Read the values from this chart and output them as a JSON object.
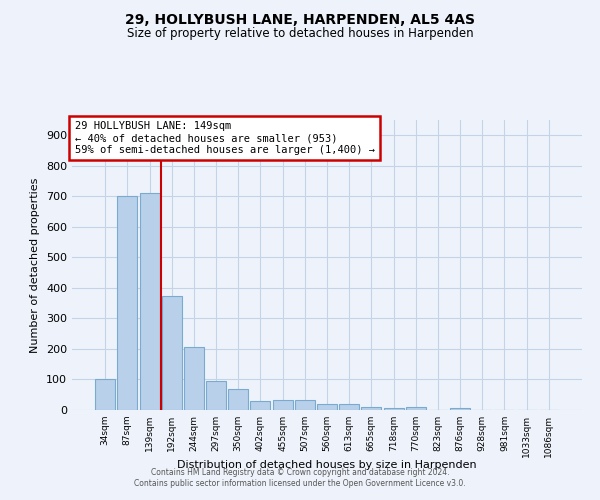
{
  "title1": "29, HOLLYBUSH LANE, HARPENDEN, AL5 4AS",
  "title2": "Size of property relative to detached houses in Harpenden",
  "xlabel": "Distribution of detached houses by size in Harpenden",
  "ylabel": "Number of detached properties",
  "categories": [
    "34sqm",
    "87sqm",
    "139sqm",
    "192sqm",
    "244sqm",
    "297sqm",
    "350sqm",
    "402sqm",
    "455sqm",
    "507sqm",
    "560sqm",
    "613sqm",
    "665sqm",
    "718sqm",
    "770sqm",
    "823sqm",
    "876sqm",
    "928sqm",
    "981sqm",
    "1033sqm",
    "1086sqm"
  ],
  "values": [
    100,
    700,
    710,
    375,
    205,
    95,
    70,
    30,
    33,
    33,
    20,
    20,
    10,
    7,
    10,
    0,
    7,
    0,
    0,
    0,
    0
  ],
  "bar_color": "#b8d0ea",
  "bar_edge_color": "#7aabcf",
  "red_line_index": 2,
  "annotation_text": "29 HOLLYBUSH LANE: 149sqm\n← 40% of detached houses are smaller (953)\n59% of semi-detached houses are larger (1,400) →",
  "annotation_box_color": "#ffffff",
  "annotation_box_edge_color": "#cc0000",
  "red_line_color": "#cc0000",
  "ylim": [
    0,
    950
  ],
  "yticks": [
    0,
    100,
    200,
    300,
    400,
    500,
    600,
    700,
    800,
    900
  ],
  "footer1": "Contains HM Land Registry data © Crown copyright and database right 2024.",
  "footer2": "Contains public sector information licensed under the Open Government Licence v3.0.",
  "bg_color": "#eef3fb",
  "grid_color": "#c5d3e8"
}
